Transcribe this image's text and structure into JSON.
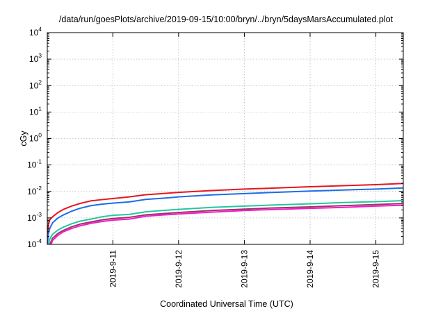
{
  "chart_data": {
    "type": "line",
    "title": "/data/run/goesPlots/archive/2019-09-15/10:00/bryn/../bryn/5daysMarsAccumulated.plot",
    "xlabel": "Coordinated Universal Time (UTC)",
    "ylabel": "cGy",
    "x_scale": "time",
    "y_scale": "log",
    "xlim": [
      "2019-09-10T00:05",
      "2019-09-15T10:00"
    ],
    "ylim": [
      0.0001,
      10000
    ],
    "x_ticks": [
      {
        "value": "2019-09-11T00:00",
        "label": "2019-9-11"
      },
      {
        "value": "2019-09-12T00:00",
        "label": "2019-9-12"
      },
      {
        "value": "2019-09-13T00:00",
        "label": "2019-9-13"
      },
      {
        "value": "2019-09-14T00:00",
        "label": "2019-9-14"
      },
      {
        "value": "2019-09-15T00:00",
        "label": "2019-9-15"
      }
    ],
    "y_ticks": [
      {
        "value": 0.0001,
        "base": "10",
        "exp": "-4"
      },
      {
        "value": 0.001,
        "base": "10",
        "exp": "-3"
      },
      {
        "value": 0.01,
        "base": "10",
        "exp": "-2"
      },
      {
        "value": 0.1,
        "base": "10",
        "exp": "-1"
      },
      {
        "value": 1,
        "base": "10",
        "exp": "0"
      },
      {
        "value": 10,
        "base": "10",
        "exp": "1"
      },
      {
        "value": 100,
        "base": "10",
        "exp": "2"
      },
      {
        "value": 1000,
        "base": "10",
        "exp": "3"
      },
      {
        "value": 10000,
        "base": "10",
        "exp": "4"
      }
    ],
    "grid": true,
    "series": [
      {
        "color": "#e8141e",
        "points": [
          [
            "2019-09-10T00:06",
            0.00015
          ],
          [
            "2019-09-10T00:30",
            0.00055
          ],
          [
            "2019-09-10T01:00",
            0.00085
          ],
          [
            "2019-09-10T02:00",
            0.0011
          ],
          [
            "2019-09-10T04:00",
            0.0016
          ],
          [
            "2019-09-10T06:00",
            0.0021
          ],
          [
            "2019-09-10T09:00",
            0.0028
          ],
          [
            "2019-09-10T12:00",
            0.0035
          ],
          [
            "2019-09-10T16:00",
            0.0044
          ],
          [
            "2019-09-10T20:00",
            0.0049
          ],
          [
            "2019-09-11T00:00",
            0.0054
          ],
          [
            "2019-09-11T06:00",
            0.0062
          ],
          [
            "2019-09-11T12:00",
            0.0075
          ],
          [
            "2019-09-11T18:00",
            0.0083
          ],
          [
            "2019-09-12T00:00",
            0.0092
          ],
          [
            "2019-09-12T12:00",
            0.0108
          ],
          [
            "2019-09-13T00:00",
            0.0123
          ],
          [
            "2019-09-13T12:00",
            0.0135
          ],
          [
            "2019-09-14T00:00",
            0.015
          ],
          [
            "2019-09-14T12:00",
            0.0165
          ],
          [
            "2019-09-15T00:00",
            0.018
          ],
          [
            "2019-09-15T10:00",
            0.02
          ]
        ]
      },
      {
        "color": "#1a6ee8",
        "points": [
          [
            "2019-09-10T00:06",
            0.0001
          ],
          [
            "2019-09-10T00:30",
            0.00025
          ],
          [
            "2019-09-10T01:00",
            0.0004
          ],
          [
            "2019-09-10T02:00",
            0.00065
          ],
          [
            "2019-09-10T04:00",
            0.001
          ],
          [
            "2019-09-10T06:00",
            0.0013
          ],
          [
            "2019-09-10T09:00",
            0.0018
          ],
          [
            "2019-09-10T12:00",
            0.0023
          ],
          [
            "2019-09-10T16:00",
            0.0029
          ],
          [
            "2019-09-10T20:00",
            0.0033
          ],
          [
            "2019-09-11T00:00",
            0.0036
          ],
          [
            "2019-09-11T06:00",
            0.004
          ],
          [
            "2019-09-11T12:00",
            0.005
          ],
          [
            "2019-09-11T18:00",
            0.0055
          ],
          [
            "2019-09-12T00:00",
            0.0062
          ],
          [
            "2019-09-12T12:00",
            0.0074
          ],
          [
            "2019-09-13T00:00",
            0.0083
          ],
          [
            "2019-09-13T12:00",
            0.0093
          ],
          [
            "2019-09-14T00:00",
            0.0103
          ],
          [
            "2019-09-14T12:00",
            0.0113
          ],
          [
            "2019-09-15T00:00",
            0.0123
          ],
          [
            "2019-09-15T10:00",
            0.0135
          ]
        ]
      },
      {
        "color": "#20c8a0",
        "points": [
          [
            "2019-09-10T00:30",
            0.0001
          ],
          [
            "2019-09-10T01:00",
            0.00016
          ],
          [
            "2019-09-10T02:00",
            0.00024
          ],
          [
            "2019-09-10T04:00",
            0.00035
          ],
          [
            "2019-09-10T06:00",
            0.00045
          ],
          [
            "2019-09-10T09:00",
            0.0006
          ],
          [
            "2019-09-10T12:00",
            0.00075
          ],
          [
            "2019-09-10T16:00",
            0.0009
          ],
          [
            "2019-09-10T20:00",
            0.0011
          ],
          [
            "2019-09-11T00:00",
            0.00125
          ],
          [
            "2019-09-11T06:00",
            0.00135
          ],
          [
            "2019-09-11T12:00",
            0.0017
          ],
          [
            "2019-09-11T18:00",
            0.0019
          ],
          [
            "2019-09-12T00:00",
            0.0021
          ],
          [
            "2019-09-12T12:00",
            0.0025
          ],
          [
            "2019-09-13T00:00",
            0.0028
          ],
          [
            "2019-09-13T12:00",
            0.0031
          ],
          [
            "2019-09-14T00:00",
            0.0034
          ],
          [
            "2019-09-14T12:00",
            0.0038
          ],
          [
            "2019-09-15T00:00",
            0.0041
          ],
          [
            "2019-09-15T10:00",
            0.0045
          ]
        ]
      },
      {
        "color": "#a0306a",
        "points": [
          [
            "2019-09-10T01:00",
            0.0001
          ],
          [
            "2019-09-10T02:00",
            0.00017
          ],
          [
            "2019-09-10T04:00",
            0.00026
          ],
          [
            "2019-09-10T06:00",
            0.00034
          ],
          [
            "2019-09-10T09:00",
            0.00046
          ],
          [
            "2019-09-10T12:00",
            0.00058
          ],
          [
            "2019-09-10T16:00",
            0.0007
          ],
          [
            "2019-09-10T20:00",
            0.00084
          ],
          [
            "2019-09-11T00:00",
            0.00095
          ],
          [
            "2019-09-11T06:00",
            0.00105
          ],
          [
            "2019-09-11T12:00",
            0.0013
          ],
          [
            "2019-09-11T18:00",
            0.00145
          ],
          [
            "2019-09-12T00:00",
            0.0016
          ],
          [
            "2019-09-12T12:00",
            0.0019
          ],
          [
            "2019-09-13T00:00",
            0.00215
          ],
          [
            "2019-09-13T12:00",
            0.0024
          ],
          [
            "2019-09-14T00:00",
            0.0026
          ],
          [
            "2019-09-14T12:00",
            0.0029
          ],
          [
            "2019-09-15T00:00",
            0.0032
          ],
          [
            "2019-09-15T10:00",
            0.0035
          ]
        ]
      },
      {
        "color": "#f01ec8",
        "points": [
          [
            "2019-09-10T01:30",
            0.0001
          ],
          [
            "2019-09-10T02:00",
            0.00014
          ],
          [
            "2019-09-10T04:00",
            0.00022
          ],
          [
            "2019-09-10T06:00",
            0.0003
          ],
          [
            "2019-09-10T09:00",
            0.0004
          ],
          [
            "2019-09-10T12:00",
            0.0005
          ],
          [
            "2019-09-10T16:00",
            0.00062
          ],
          [
            "2019-09-10T20:00",
            0.00073
          ],
          [
            "2019-09-11T00:00",
            0.00082
          ],
          [
            "2019-09-11T06:00",
            0.0009
          ],
          [
            "2019-09-11T12:00",
            0.00115
          ],
          [
            "2019-09-11T18:00",
            0.00128
          ],
          [
            "2019-09-12T00:00",
            0.0014
          ],
          [
            "2019-09-12T12:00",
            0.00165
          ],
          [
            "2019-09-13T00:00",
            0.0019
          ],
          [
            "2019-09-13T12:00",
            0.0021
          ],
          [
            "2019-09-14T00:00",
            0.0023
          ],
          [
            "2019-09-14T12:00",
            0.0025
          ],
          [
            "2019-09-15T00:00",
            0.0028
          ],
          [
            "2019-09-15T10:00",
            0.003
          ]
        ]
      }
    ]
  }
}
